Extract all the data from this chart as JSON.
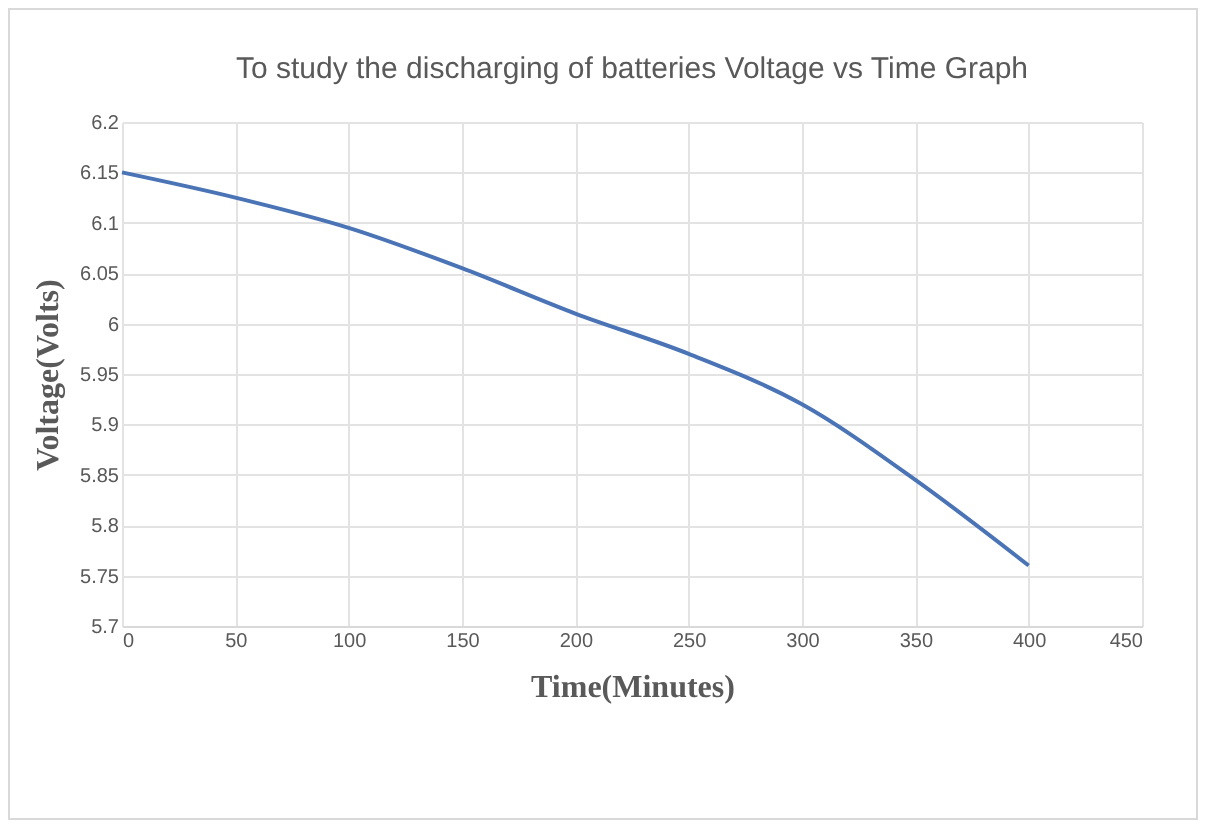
{
  "chart_data": {
    "type": "line",
    "title": "To study the discharging of batteries Voltage vs Time Graph",
    "xlabel": "Time(Minutes)",
    "ylabel": "Voltage(Volts)",
    "x": [
      0,
      50,
      100,
      150,
      200,
      250,
      300,
      350,
      400
    ],
    "series": [
      {
        "color": "#4a74b5",
        "values": [
          6.15,
          6.125,
          6.095,
          6.055,
          6.01,
          5.97,
          5.92,
          5.845,
          5.76
        ]
      }
    ],
    "xlim": [
      0,
      450
    ],
    "xticks": [
      0,
      50,
      100,
      150,
      200,
      250,
      300,
      350,
      400,
      450
    ],
    "ylim": [
      5.7,
      6.2
    ],
    "yticks": [
      5.7,
      5.75,
      5.8,
      5.85,
      5.9,
      5.95,
      6,
      6.05,
      6.1,
      6.15,
      6.2
    ],
    "grid": true,
    "legend": false,
    "marker": "none",
    "line_style": "solid"
  }
}
